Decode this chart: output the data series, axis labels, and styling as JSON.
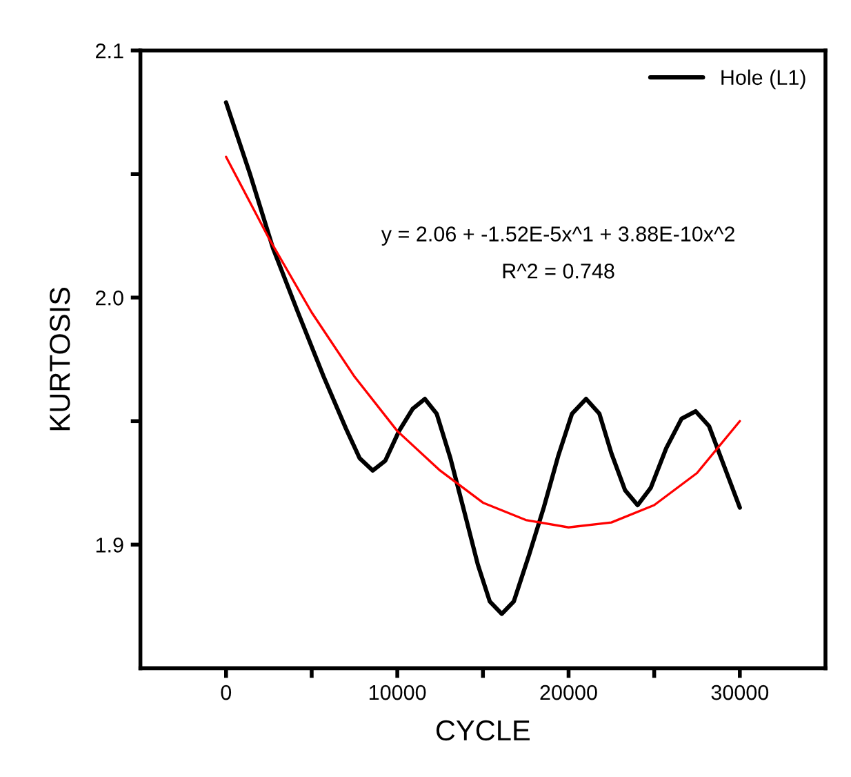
{
  "chart_data": {
    "type": "line",
    "xlabel": "CYCLE",
    "ylabel": "KURTOSIS",
    "xlim": [
      -5000,
      35000
    ],
    "ylim": [
      1.85,
      2.1
    ],
    "xticks": [
      0,
      {
        "value": 5000,
        "label": null
      },
      10000,
      {
        "value": 15000,
        "label": null
      },
      20000,
      {
        "value": 25000,
        "label": null
      },
      30000
    ],
    "yticks": [
      1.9,
      {
        "value": 1.95,
        "label": null
      },
      {
        "value": 2.0,
        "label": "2.0"
      },
      {
        "value": 2.05,
        "label": null
      },
      2.1
    ],
    "grid": false,
    "legend": "top right",
    "marker": "none",
    "line_style": "solid",
    "annotations": [
      "y = 2.06 + -1.52E-5x^1 + 3.88E-10x^2",
      "R^2 = 0.748"
    ],
    "series": [
      {
        "name": "Hole (L1)",
        "color": "#000000",
        "x": [
          0,
          1400,
          2740,
          4200,
          5700,
          7000,
          7800,
          8570,
          9300,
          10100,
          10900,
          11610,
          12300,
          13100,
          13850,
          14700,
          15400,
          16100,
          16800,
          17700,
          18550,
          19400,
          20200,
          21020,
          21800,
          22500,
          23300,
          24030,
          24800,
          25700,
          26600,
          27420,
          28200,
          28800,
          29400,
          30000
        ],
        "values": [
          2.079,
          2.05,
          2.02,
          1.994,
          1.968,
          1.947,
          1.935,
          1.93,
          1.934,
          1.946,
          1.955,
          1.959,
          1.953,
          1.935,
          1.915,
          1.892,
          1.877,
          1.872,
          1.877,
          1.896,
          1.915,
          1.936,
          1.953,
          1.959,
          1.953,
          1.937,
          1.922,
          1.916,
          1.923,
          1.939,
          1.951,
          1.954,
          1.948,
          1.937,
          1.926,
          1.915
        ]
      },
      {
        "color": "#ff0000",
        "x": [
          0,
          2500,
          5000,
          7500,
          10000,
          12500,
          15000,
          17500,
          20000,
          22500,
          25000,
          27500,
          30000
        ],
        "values": [
          2.057,
          2.024,
          1.994,
          1.968,
          1.946,
          1.93,
          1.917,
          1.91,
          1.907,
          1.909,
          1.916,
          1.929,
          1.95
        ]
      }
    ]
  }
}
